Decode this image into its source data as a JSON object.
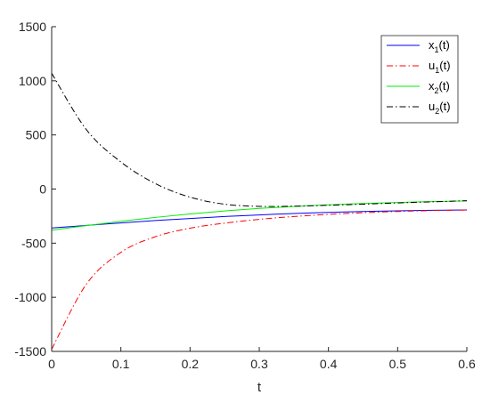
{
  "chart_data": {
    "type": "line",
    "title": "",
    "xlabel": "t",
    "ylabel": "",
    "xlim": [
      0,
      0.6
    ],
    "ylim": [
      -1500,
      1500
    ],
    "xticks": [
      0,
      0.1,
      0.2,
      0.3,
      0.4,
      0.5,
      0.6
    ],
    "xtick_labels": [
      "0",
      "0.1",
      "0.2",
      "0.3",
      "0.4",
      "0.5",
      "0.6"
    ],
    "yticks": [
      -1500,
      -1000,
      -500,
      0,
      500,
      1000,
      1500
    ],
    "ytick_labels": [
      "-1500",
      "-1000",
      "-500",
      "0",
      "500",
      "1000",
      "1500"
    ],
    "grid": false,
    "legend_position": "top-right",
    "x": [
      0,
      0.05,
      0.1,
      0.15,
      0.2,
      0.25,
      0.3,
      0.35,
      0.4,
      0.45,
      0.5,
      0.55,
      0.6
    ],
    "series": [
      {
        "name": "x",
        "sub": "1",
        "suffix": "(t)",
        "color": "#0000ff",
        "dash": "solid",
        "values": [
          -360,
          -336,
          -313,
          -291,
          -272,
          -254,
          -239,
          -226,
          -216,
          -207,
          -201,
          -196,
          -193
        ]
      },
      {
        "name": "u",
        "sub": "1",
        "suffix": "(t)",
        "color": "#ff0000",
        "dash": "dashdot",
        "values": [
          -1480,
          -880,
          -585,
          -440,
          -362,
          -315,
          -280,
          -254,
          -234,
          -219,
          -207,
          -199,
          -194
        ]
      },
      {
        "name": "x",
        "sub": "2",
        "suffix": "(t)",
        "color": "#00ee00",
        "dash": "solid",
        "values": [
          -380,
          -338,
          -298,
          -262,
          -230,
          -202,
          -179,
          -161,
          -146,
          -134,
          -124,
          -116,
          -110
        ]
      },
      {
        "name": "u",
        "sub": "2",
        "suffix": "(t)",
        "color": "#000000",
        "dash": "dashdot",
        "values": [
          1070,
          550,
          250,
          50,
          -75,
          -140,
          -160,
          -158,
          -150,
          -140,
          -128,
          -118,
          -108
        ]
      }
    ]
  }
}
